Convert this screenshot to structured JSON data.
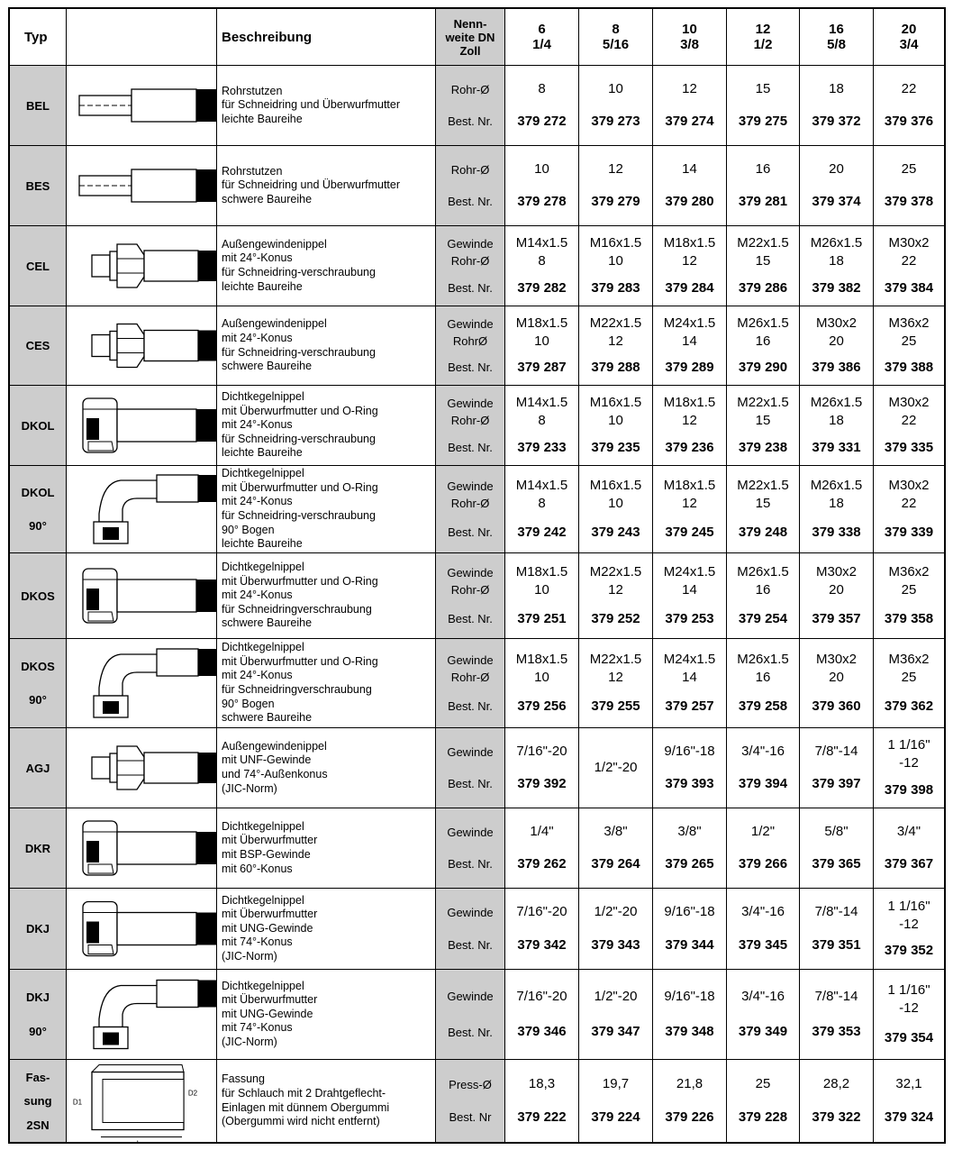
{
  "header": {
    "typ": "Typ",
    "beschreibung": "Beschreibung",
    "nennweite": [
      "Nenn-",
      "weite DN",
      "Zoll"
    ],
    "sizes": [
      {
        "dn": "6",
        "zoll": "1/4"
      },
      {
        "dn": "8",
        "zoll": "5/16"
      },
      {
        "dn": "10",
        "zoll": "3/8"
      },
      {
        "dn": "12",
        "zoll": "1/2"
      },
      {
        "dn": "16",
        "zoll": "5/8"
      },
      {
        "dn": "20",
        "zoll": "3/4"
      }
    ]
  },
  "rows": [
    {
      "typ": [
        "BEL"
      ],
      "description": [
        "Rohrstutzen",
        "für Schneidring und Überwurfmutter",
        "leichte Baureihe"
      ],
      "labels": [
        "Rohr-Ø"
      ],
      "nr_label": "Best. Nr.",
      "cells": [
        {
          "lines": [
            "8"
          ],
          "nr": "379 272"
        },
        {
          "lines": [
            "10"
          ],
          "nr": "379 273"
        },
        {
          "lines": [
            "12"
          ],
          "nr": "379 274"
        },
        {
          "lines": [
            "15"
          ],
          "nr": "379 275"
        },
        {
          "lines": [
            "18"
          ],
          "nr": "379 372"
        },
        {
          "lines": [
            "22"
          ],
          "nr": "379 376"
        }
      ]
    },
    {
      "typ": [
        "BES"
      ],
      "description": [
        "Rohrstutzen",
        "für Schneidring und Überwurfmutter",
        "schwere Baureihe"
      ],
      "labels": [
        "Rohr-Ø"
      ],
      "nr_label": "Best. Nr.",
      "cells": [
        {
          "lines": [
            "10"
          ],
          "nr": "379 278"
        },
        {
          "lines": [
            "12"
          ],
          "nr": "379 279"
        },
        {
          "lines": [
            "14"
          ],
          "nr": "379 280"
        },
        {
          "lines": [
            "16"
          ],
          "nr": "379 281"
        },
        {
          "lines": [
            "20"
          ],
          "nr": "379 374"
        },
        {
          "lines": [
            "25"
          ],
          "nr": "379 378"
        }
      ]
    },
    {
      "typ": [
        "CEL"
      ],
      "description": [
        "Außengewindenippel",
        "mit 24°-Konus",
        "für Schneidring-verschraubung",
        "leichte Baureihe"
      ],
      "labels": [
        "Gewinde",
        "Rohr-Ø"
      ],
      "nr_label": "Best. Nr.",
      "cells": [
        {
          "lines": [
            "M14x1.5",
            "8"
          ],
          "nr": "379 282"
        },
        {
          "lines": [
            "M16x1.5",
            "10"
          ],
          "nr": "379 283"
        },
        {
          "lines": [
            "M18x1.5",
            "12"
          ],
          "nr": "379 284"
        },
        {
          "lines": [
            "M22x1.5",
            "15"
          ],
          "nr": "379 286"
        },
        {
          "lines": [
            "M26x1.5",
            "18"
          ],
          "nr": "379 382"
        },
        {
          "lines": [
            "M30x2",
            "22"
          ],
          "nr": "379 384"
        }
      ]
    },
    {
      "typ": [
        "CES"
      ],
      "description": [
        "Außengewindenippel",
        "mit 24°-Konus",
        "für Schneidring-verschraubung",
        "schwere Baureihe"
      ],
      "labels": [
        "Gewinde",
        "RohrØ"
      ],
      "nr_label": "Best. Nr.",
      "cells": [
        {
          "lines": [
            "M18x1.5",
            "10"
          ],
          "nr": "379 287"
        },
        {
          "lines": [
            "M22x1.5",
            "12"
          ],
          "nr": "379 288"
        },
        {
          "lines": [
            "M24x1.5",
            "14"
          ],
          "nr": "379 289"
        },
        {
          "lines": [
            "M26x1.5",
            "16"
          ],
          "nr": "379 290"
        },
        {
          "lines": [
            "M30x2",
            "20"
          ],
          "nr": "379 386"
        },
        {
          "lines": [
            "M36x2",
            "25"
          ],
          "nr": "379 388"
        }
      ]
    },
    {
      "typ": [
        "DKOL"
      ],
      "description": [
        "Dichtkegelnippel",
        "mit Überwurfmutter und O-Ring",
        "mit 24°-Konus",
        "für Schneidring-verschraubung",
        "leichte Baureihe"
      ],
      "labels": [
        "Gewinde",
        "Rohr-Ø"
      ],
      "nr_label": "Best. Nr.",
      "cells": [
        {
          "lines": [
            "M14x1.5",
            "8"
          ],
          "nr": "379 233"
        },
        {
          "lines": [
            "M16x1.5",
            "10"
          ],
          "nr": "379 235"
        },
        {
          "lines": [
            "M18x1.5",
            "12"
          ],
          "nr": "379 236"
        },
        {
          "lines": [
            "M22x1.5",
            "15"
          ],
          "nr": "379 238"
        },
        {
          "lines": [
            "M26x1.5",
            "18"
          ],
          "nr": "379 331"
        },
        {
          "lines": [
            "M30x2",
            "22"
          ],
          "nr": "379 335"
        }
      ]
    },
    {
      "typ": [
        "DKOL",
        "90°"
      ],
      "description": [
        "Dichtkegelnippel",
        "mit Überwurfmutter und O-Ring",
        "mit 24°-Konus",
        "für Schneidring-verschraubung",
        "90° Bogen",
        "leichte Baureihe"
      ],
      "labels": [
        "Gewinde",
        "Rohr-Ø"
      ],
      "nr_label": "Best. Nr.",
      "cells": [
        {
          "lines": [
            "M14x1.5",
            "8"
          ],
          "nr": "379 242"
        },
        {
          "lines": [
            "M16x1.5",
            "10"
          ],
          "nr": "379 243"
        },
        {
          "lines": [
            "M18x1.5",
            "12"
          ],
          "nr": "379 245"
        },
        {
          "lines": [
            "M22x1.5",
            "15"
          ],
          "nr": "379 248"
        },
        {
          "lines": [
            "M26x1.5",
            "18"
          ],
          "nr": "379 338"
        },
        {
          "lines": [
            "M30x2",
            "22"
          ],
          "nr": "379 339"
        }
      ]
    },
    {
      "typ": [
        "DKOS"
      ],
      "description": [
        "Dichtkegelnippel",
        "mit Überwurfmutter und O-Ring",
        "mit 24°-Konus",
        "für Schneidringverschraubung",
        "schwere Baureihe"
      ],
      "labels": [
        "Gewinde",
        "Rohr-Ø"
      ],
      "nr_label": "Best. Nr.",
      "cells": [
        {
          "lines": [
            "M18x1.5",
            "10"
          ],
          "nr": "379 251"
        },
        {
          "lines": [
            "M22x1.5",
            "12"
          ],
          "nr": "379 252"
        },
        {
          "lines": [
            "M24x1.5",
            "14"
          ],
          "nr": "379 253"
        },
        {
          "lines": [
            "M26x1.5",
            "16"
          ],
          "nr": "379 254"
        },
        {
          "lines": [
            "M30x2",
            "20"
          ],
          "nr": "379 357"
        },
        {
          "lines": [
            "M36x2",
            "25"
          ],
          "nr": "379 358"
        }
      ]
    },
    {
      "typ": [
        "DKOS",
        "90°"
      ],
      "description": [
        "Dichtkegelnippel",
        "mit Überwurfmutter und O-Ring",
        "mit 24°-Konus",
        "für Schneidringverschraubung",
        "90° Bogen",
        "schwere Baureihe"
      ],
      "labels": [
        "Gewinde",
        "Rohr-Ø"
      ],
      "nr_label": "Best. Nr.",
      "cells": [
        {
          "lines": [
            "M18x1.5",
            "10"
          ],
          "nr": "379 256"
        },
        {
          "lines": [
            "M22x1.5",
            "12"
          ],
          "nr": "379 255"
        },
        {
          "lines": [
            "M24x1.5",
            "14"
          ],
          "nr": "379 257"
        },
        {
          "lines": [
            "M26x1.5",
            "16"
          ],
          "nr": "379 258"
        },
        {
          "lines": [
            "M30x2",
            "20"
          ],
          "nr": "379 360"
        },
        {
          "lines": [
            "M36x2",
            "25"
          ],
          "nr": "379 362"
        }
      ]
    },
    {
      "typ": [
        "AGJ"
      ],
      "description": [
        "Außengewindenippel",
        "mit UNF-Gewinde",
        "und 74°-Außenkonus",
        "(JIC-Norm)"
      ],
      "labels": [
        "Gewinde"
      ],
      "nr_label": "Best. Nr.",
      "cells": [
        {
          "lines": [
            "7/16\"-20"
          ],
          "nr": "379 392"
        },
        {
          "lines": [
            "1/2\"-20"
          ]
        },
        {
          "lines": [
            "9/16\"-18"
          ],
          "nr": "379 393"
        },
        {
          "lines": [
            "3/4\"-16"
          ],
          "nr": "379 394"
        },
        {
          "lines": [
            "7/8\"-14"
          ],
          "nr": "379 397"
        },
        {
          "lines": [
            "1 1/16\"",
            "-12"
          ],
          "nr": "379 398"
        }
      ]
    },
    {
      "typ": [
        "DKR"
      ],
      "description": [
        "Dichtkegelnippel",
        "mit Überwurfmutter",
        "mit BSP-Gewinde",
        "mit 60°-Konus"
      ],
      "labels": [
        "Gewinde"
      ],
      "nr_label": "Best. Nr.",
      "cells": [
        {
          "lines": [
            "1/4\""
          ],
          "nr": "379 262"
        },
        {
          "lines": [
            "3/8\""
          ],
          "nr": "379 264"
        },
        {
          "lines": [
            "3/8\""
          ],
          "nr": "379 265"
        },
        {
          "lines": [
            "1/2\""
          ],
          "nr": "379 266"
        },
        {
          "lines": [
            "5/8\""
          ],
          "nr": "379 365"
        },
        {
          "lines": [
            "3/4\""
          ],
          "nr": "379 367"
        }
      ]
    },
    {
      "typ": [
        "DKJ"
      ],
      "description": [
        "Dichtkegelnippel",
        "mit Überwurfmutter",
        "mit UNG-Gewinde",
        "mit 74°-Konus",
        "(JIC-Norm)"
      ],
      "labels": [
        "Gewinde"
      ],
      "nr_label": "Best. Nr.",
      "cells": [
        {
          "lines": [
            "7/16\"-20"
          ],
          "nr": "379 342"
        },
        {
          "lines": [
            "1/2\"-20"
          ],
          "nr": "379 343"
        },
        {
          "lines": [
            "9/16\"-18"
          ],
          "nr": "379 344"
        },
        {
          "lines": [
            "3/4\"-16"
          ],
          "nr": "379 345"
        },
        {
          "lines": [
            "7/8\"-14"
          ],
          "nr": "379 351"
        },
        {
          "lines": [
            "1 1/16\"",
            "-12"
          ],
          "nr": "379 352"
        }
      ]
    },
    {
      "typ": [
        "DKJ",
        "90°"
      ],
      "description": [
        "Dichtkegelnippel",
        "mit Überwurfmutter",
        "mit UNG-Gewinde",
        "mit 74°-Konus",
        "(JIC-Norm)"
      ],
      "labels": [
        "Gewinde"
      ],
      "nr_label": "Best. Nr.",
      "cells": [
        {
          "lines": [
            "7/16\"-20"
          ],
          "nr": "379 346"
        },
        {
          "lines": [
            "1/2\"-20"
          ],
          "nr": "379 347"
        },
        {
          "lines": [
            "9/16\"-18"
          ],
          "nr": "379 348"
        },
        {
          "lines": [
            "3/4\"-16"
          ],
          "nr": "379 349"
        },
        {
          "lines": [
            "7/8\"-14"
          ],
          "nr": "379 353"
        },
        {
          "lines": [
            "1 1/16\"",
            "-12"
          ],
          "nr": "379 354"
        }
      ]
    },
    {
      "typ": [
        "Fas-",
        "sung",
        "2SN"
      ],
      "description": [
        "Fassung",
        "für Schlauch mit 2 Drahtgeflecht-",
        "Einlagen mit dünnem Obergummi",
        "(Obergummi wird nicht entfernt)"
      ],
      "labels": [
        "Press-Ø"
      ],
      "nr_label": "Best. Nr",
      "drawing_labels": [
        "D1",
        "D2",
        "L"
      ],
      "cells": [
        {
          "lines": [
            "18,3"
          ],
          "nr": "379 222"
        },
        {
          "lines": [
            "19,7"
          ],
          "nr": "379 224"
        },
        {
          "lines": [
            "21,8"
          ],
          "nr": "379 226"
        },
        {
          "lines": [
            "25"
          ],
          "nr": "379 228"
        },
        {
          "lines": [
            "28,2"
          ],
          "nr": "379 322"
        },
        {
          "lines": [
            "32,1"
          ],
          "nr": "379 324"
        }
      ]
    }
  ]
}
